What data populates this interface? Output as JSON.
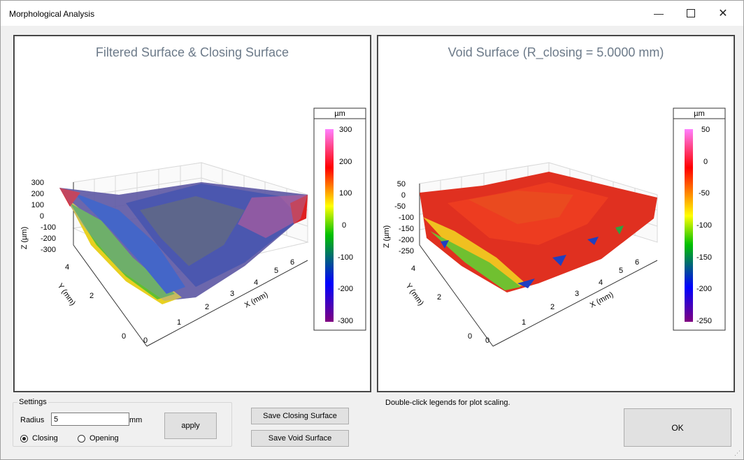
{
  "window": {
    "title": "Morphological Analysis",
    "minimize_icon": "minimize-icon",
    "maximize_icon": "maximize-icon",
    "close_icon": "close-icon"
  },
  "colors": {
    "title_text": "#6c7a89",
    "grid": "#d8d8d8",
    "closing_surface": "#8a8fd8"
  },
  "plots": [
    {
      "title": "Filtered Surface & Closing Surface",
      "legend": {
        "unit": "µm",
        "ticks": [
          "300",
          "200",
          "100",
          "0",
          "-100",
          "-200",
          "-300"
        ],
        "colormap": [
          "#ff80ff",
          "#ff0000",
          "#ffff00",
          "#00c000",
          "#0000ff",
          "#800080"
        ]
      },
      "z_label": "Z (µm)",
      "z_ticks": [
        "300",
        "200",
        "100",
        "0",
        "-100",
        "-200",
        "-300"
      ],
      "y_label": "Y (mm)",
      "y_ticks": [
        "4",
        "2",
        "0"
      ],
      "x_label": "X (mm)",
      "x_ticks": [
        "0",
        "1",
        "2",
        "3",
        "4",
        "5",
        "6"
      ]
    },
    {
      "title": "Void Surface (R_closing = 5.0000 mm)",
      "legend": {
        "unit": "µm",
        "ticks": [
          "50",
          "0",
          "-50",
          "-100",
          "-150",
          "-200",
          "-250"
        ],
        "colormap": [
          "#ff80ff",
          "#ff0000",
          "#ffff00",
          "#00c000",
          "#0000ff",
          "#800080"
        ]
      },
      "z_label": "Z (µm)",
      "z_ticks": [
        "50",
        "0",
        "-50",
        "-100",
        "-150",
        "-200",
        "-250"
      ],
      "y_label": "Y (mm)",
      "y_ticks": [
        "4",
        "2",
        "0"
      ],
      "x_label": "X (mm)",
      "x_ticks": [
        "0",
        "1",
        "2",
        "3",
        "4",
        "5",
        "6"
      ]
    }
  ],
  "hint": "Double-click legends for plot scaling.",
  "settings": {
    "group_label": "Settings",
    "radius_label": "Radius",
    "radius_value": "5",
    "radius_unit": "mm",
    "apply_label": "apply",
    "closing_label": "Closing",
    "opening_label": "Opening",
    "selected": "Closing"
  },
  "buttons": {
    "save_closing": "Save Closing Surface",
    "save_void": "Save Void Surface",
    "ok": "OK"
  }
}
